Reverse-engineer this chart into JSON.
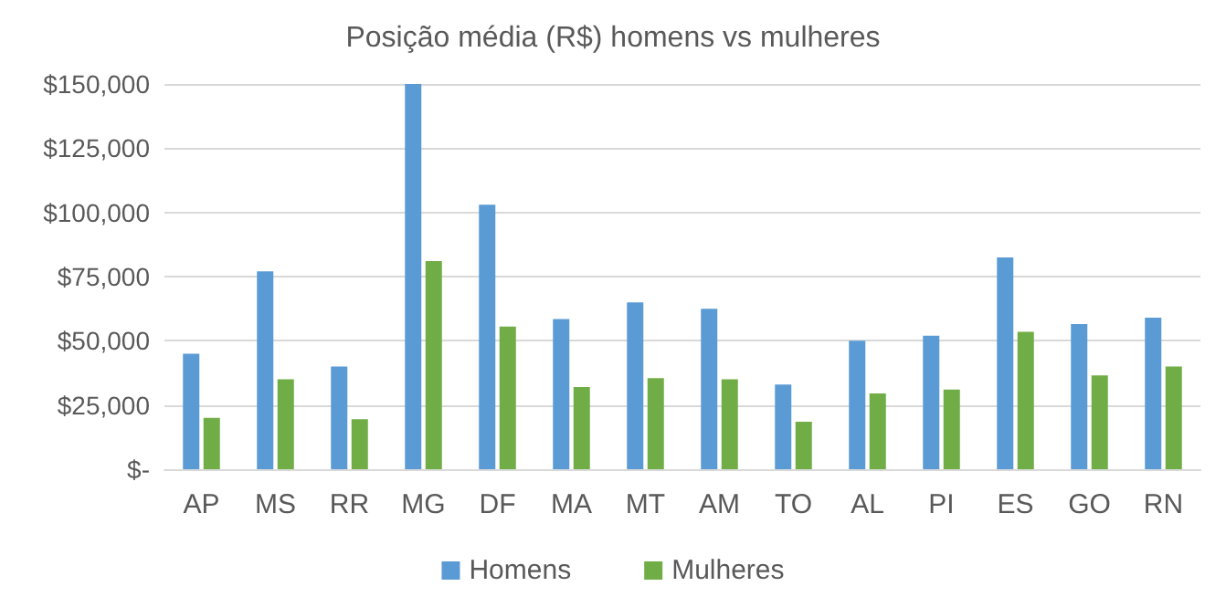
{
  "chart_data": {
    "type": "bar",
    "title": "Posição média (R$) homens vs mulheres",
    "categories": [
      "AP",
      "MS",
      "RR",
      "MG",
      "DF",
      "MA",
      "MT",
      "AM",
      "TO",
      "AL",
      "PI",
      "ES",
      "GO",
      "RN"
    ],
    "series": [
      {
        "name": "Homens",
        "color": "#5b9bd5",
        "values": [
          45000,
          77000,
          40000,
          150000,
          103000,
          58500,
          65000,
          62500,
          33000,
          50000,
          52000,
          82500,
          56500,
          59000
        ]
      },
      {
        "name": "Mulheres",
        "color": "#70ad47",
        "values": [
          20000,
          35000,
          19500,
          81000,
          55500,
          32000,
          35500,
          35000,
          18500,
          29500,
          31000,
          53500,
          36500,
          40000
        ]
      }
    ],
    "ylim": [
      0,
      150000
    ],
    "yticks": [
      {
        "value": 0,
        "label": "$-"
      },
      {
        "value": 25000,
        "label": "$25,000"
      },
      {
        "value": 50000,
        "label": "$50,000"
      },
      {
        "value": 75000,
        "label": "$75,000"
      },
      {
        "value": 100000,
        "label": "$100,000"
      },
      {
        "value": 125000,
        "label": "$125,000"
      },
      {
        "value": 150000,
        "label": "$150,000"
      }
    ],
    "grid": "y",
    "legend": "bottom"
  }
}
